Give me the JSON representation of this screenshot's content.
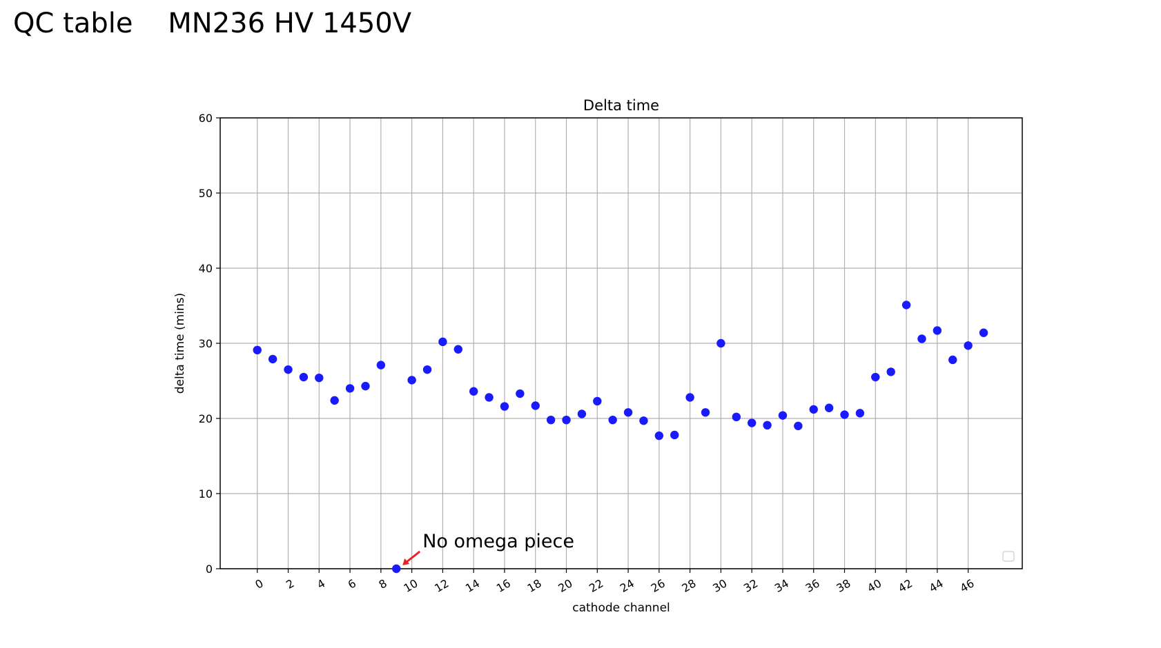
{
  "slide": {
    "title": "QC table    MN236 HV 1450V"
  },
  "chart_data": {
    "type": "scatter",
    "title": "Delta time",
    "xlabel": "cathode channel",
    "ylabel": "delta time (mins)",
    "xlim": [
      -2.4,
      49.5
    ],
    "ylim": [
      0,
      60
    ],
    "x_ticks": [
      0,
      2,
      4,
      6,
      8,
      10,
      12,
      14,
      16,
      18,
      20,
      22,
      24,
      26,
      28,
      30,
      32,
      34,
      36,
      38,
      40,
      42,
      44,
      46
    ],
    "y_ticks": [
      0,
      10,
      20,
      30,
      40,
      50,
      60
    ],
    "grid": true,
    "legend": "lower right (empty)",
    "marker_color": "#1a1aff",
    "series": [
      {
        "x": [
          0,
          1,
          2,
          3,
          4,
          5,
          6,
          7,
          8,
          9,
          10,
          11,
          12,
          13,
          14,
          15,
          16,
          17,
          18,
          19,
          20,
          21,
          22,
          23,
          24,
          25,
          26,
          27,
          28,
          29,
          30,
          31,
          32,
          33,
          34,
          35,
          36,
          37,
          38,
          39,
          40,
          41,
          42,
          43,
          44,
          45,
          46,
          47
        ],
        "y": [
          29.1,
          27.9,
          26.5,
          25.5,
          25.4,
          22.4,
          24.0,
          24.3,
          27.1,
          0.0,
          25.1,
          26.5,
          30.2,
          29.2,
          23.6,
          22.8,
          21.6,
          23.3,
          21.7,
          19.8,
          19.8,
          20.6,
          22.3,
          19.8,
          20.8,
          19.7,
          17.7,
          17.8,
          22.8,
          20.8,
          30.0,
          20.2,
          19.4,
          19.1,
          20.4,
          19.0,
          21.2,
          21.4,
          20.5,
          20.7,
          25.5,
          26.2,
          35.1,
          30.6,
          31.7,
          27.8,
          29.7,
          31.4
        ]
      }
    ],
    "annotation": {
      "text": "No omega piece",
      "x": 9,
      "y": 0,
      "arrow_color": "#e8202a"
    }
  }
}
